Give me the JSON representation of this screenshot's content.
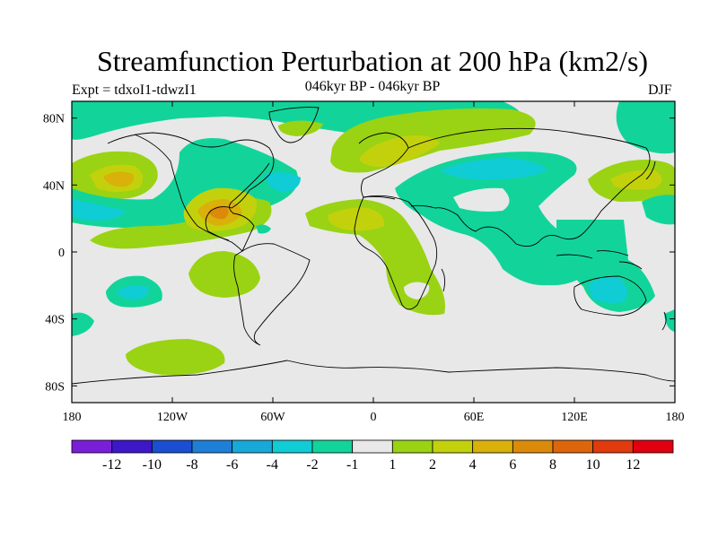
{
  "title": "Streamfunction Perturbation at 200 hPa (km2/s)",
  "subtitle": "046kyr BP - 046kyr BP",
  "left_label": "Expt = tdxoI1-tdwzI1",
  "right_label": "DJF",
  "x_ticks": [
    {
      "lon": -180,
      "label": "180"
    },
    {
      "lon": -120,
      "label": "120W"
    },
    {
      "lon": -60,
      "label": "60W"
    },
    {
      "lon": 0,
      "label": "0"
    },
    {
      "lon": 60,
      "label": "60E"
    },
    {
      "lon": 120,
      "label": "120E"
    },
    {
      "lon": 180,
      "label": "180"
    }
  ],
  "y_ticks": [
    {
      "lat": 80,
      "label": "80N"
    },
    {
      "lat": 40,
      "label": "40N"
    },
    {
      "lat": 0,
      "label": "0"
    },
    {
      "lat": -40,
      "label": "40S"
    },
    {
      "lat": -80,
      "label": "80S"
    }
  ],
  "colorbar": {
    "colors": [
      "#7a1fd8",
      "#3d17c8",
      "#1a4fd1",
      "#1e7fd7",
      "#17a9d8",
      "#0fccd5",
      "#12d49a",
      "#e8e8e8",
      "#9ad313",
      "#c3d10c",
      "#d9b10a",
      "#dc8a0a",
      "#dd650b",
      "#e03a0d",
      "#e0000f"
    ],
    "labels": [
      "-12",
      "-10",
      "-8",
      "-6",
      "-4",
      "-2",
      "-1",
      "1",
      "2",
      "4",
      "6",
      "8",
      "10",
      "12"
    ]
  }
}
